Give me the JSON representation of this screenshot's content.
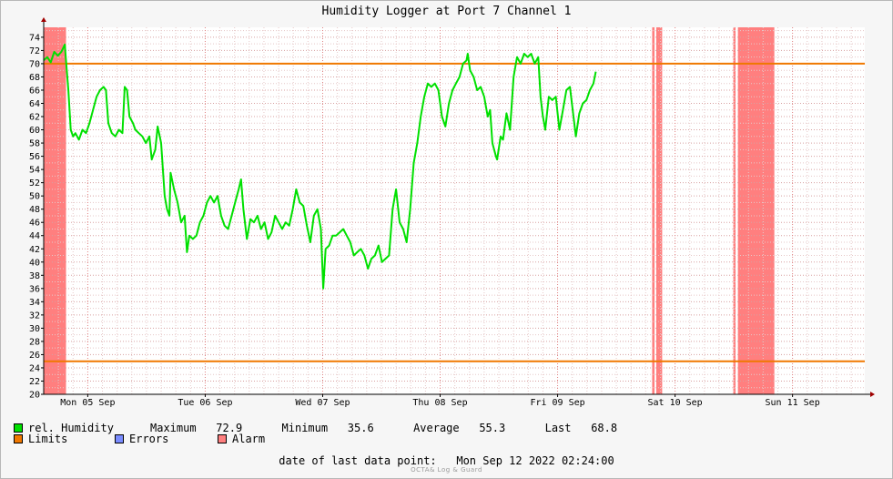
{
  "chart_data": {
    "type": "line",
    "title": "Humidity Logger at Port 7 Channel 1",
    "y_ticks": [
      20,
      22,
      24,
      26,
      28,
      30,
      32,
      34,
      36,
      38,
      40,
      42,
      44,
      46,
      48,
      50,
      52,
      54,
      56,
      58,
      60,
      62,
      64,
      66,
      68,
      70,
      72,
      74
    ],
    "ylim": [
      20,
      75.5
    ],
    "x_range_days": [
      0,
      6.99
    ],
    "x_ticks": [
      {
        "day": 0.375,
        "label": "Mon 05 Sep"
      },
      {
        "day": 1.375,
        "label": "Tue 06 Sep"
      },
      {
        "day": 2.375,
        "label": "Wed 07 Sep"
      },
      {
        "day": 3.375,
        "label": "Thu 08 Sep"
      },
      {
        "day": 4.375,
        "label": "Fri 09 Sep"
      },
      {
        "day": 5.375,
        "label": "Sat 10 Sep"
      },
      {
        "day": 6.375,
        "label": "Sun 11 Sep"
      }
    ],
    "limits": [
      70,
      25
    ],
    "alarm_bands": [
      [
        0.0,
        0.19
      ],
      [
        5.18,
        5.2
      ],
      [
        5.215,
        5.265
      ],
      [
        5.87,
        5.89
      ],
      [
        5.91,
        6.22
      ]
    ],
    "series": [
      {
        "name": "rel. Humidity",
        "color": "#00e000",
        "points": [
          [
            0.0,
            70.5
          ],
          [
            0.03,
            71.0
          ],
          [
            0.06,
            70.2
          ],
          [
            0.09,
            71.8
          ],
          [
            0.12,
            71.2
          ],
          [
            0.15,
            71.8
          ],
          [
            0.18,
            72.9
          ],
          [
            0.19,
            70.5
          ],
          [
            0.21,
            66
          ],
          [
            0.23,
            60
          ],
          [
            0.25,
            59
          ],
          [
            0.27,
            59.5
          ],
          [
            0.3,
            58.5
          ],
          [
            0.33,
            60
          ],
          [
            0.36,
            59.5
          ],
          [
            0.39,
            61
          ],
          [
            0.42,
            63
          ],
          [
            0.45,
            65
          ],
          [
            0.48,
            66
          ],
          [
            0.51,
            66.5
          ],
          [
            0.53,
            66
          ],
          [
            0.55,
            61
          ],
          [
            0.58,
            59.5
          ],
          [
            0.61,
            59
          ],
          [
            0.64,
            60
          ],
          [
            0.67,
            59.5
          ],
          [
            0.69,
            66.5
          ],
          [
            0.71,
            66
          ],
          [
            0.73,
            62
          ],
          [
            0.76,
            61
          ],
          [
            0.78,
            60
          ],
          [
            0.81,
            59.5
          ],
          [
            0.84,
            59
          ],
          [
            0.87,
            58
          ],
          [
            0.9,
            59
          ],
          [
            0.92,
            55.5
          ],
          [
            0.95,
            57
          ],
          [
            0.97,
            60.5
          ],
          [
            1.0,
            58
          ],
          [
            1.03,
            50
          ],
          [
            1.05,
            48
          ],
          [
            1.07,
            47
          ],
          [
            1.08,
            53.5
          ],
          [
            1.11,
            51
          ],
          [
            1.14,
            49
          ],
          [
            1.17,
            46
          ],
          [
            1.2,
            47
          ],
          [
            1.22,
            41.5
          ],
          [
            1.24,
            44
          ],
          [
            1.27,
            43.5
          ],
          [
            1.3,
            44
          ],
          [
            1.33,
            46
          ],
          [
            1.36,
            47
          ],
          [
            1.39,
            49
          ],
          [
            1.42,
            50
          ],
          [
            1.45,
            49
          ],
          [
            1.48,
            50
          ],
          [
            1.51,
            47
          ],
          [
            1.54,
            45.5
          ],
          [
            1.57,
            45
          ],
          [
            1.6,
            47
          ],
          [
            1.63,
            49
          ],
          [
            1.66,
            51
          ],
          [
            1.68,
            52.5
          ],
          [
            1.7,
            48
          ],
          [
            1.73,
            43.5
          ],
          [
            1.76,
            46.5
          ],
          [
            1.79,
            46
          ],
          [
            1.82,
            47
          ],
          [
            1.85,
            45
          ],
          [
            1.88,
            46
          ],
          [
            1.91,
            43.5
          ],
          [
            1.94,
            44.5
          ],
          [
            1.97,
            47
          ],
          [
            2.0,
            46
          ],
          [
            2.03,
            45
          ],
          [
            2.06,
            46
          ],
          [
            2.09,
            45.5
          ],
          [
            2.12,
            48
          ],
          [
            2.15,
            51
          ],
          [
            2.18,
            49
          ],
          [
            2.21,
            48.5
          ],
          [
            2.24,
            45.5
          ],
          [
            2.27,
            43
          ],
          [
            2.3,
            47
          ],
          [
            2.33,
            48
          ],
          [
            2.36,
            45
          ],
          [
            2.38,
            36
          ],
          [
            2.4,
            42
          ],
          [
            2.43,
            42.5
          ],
          [
            2.46,
            44
          ],
          [
            2.49,
            44
          ],
          [
            2.52,
            44.5
          ],
          [
            2.55,
            45
          ],
          [
            2.58,
            44
          ],
          [
            2.61,
            43
          ],
          [
            2.64,
            41
          ],
          [
            2.67,
            41.5
          ],
          [
            2.7,
            42
          ],
          [
            2.73,
            41
          ],
          [
            2.76,
            39
          ],
          [
            2.79,
            40.5
          ],
          [
            2.82,
            41
          ],
          [
            2.85,
            42.5
          ],
          [
            2.88,
            40
          ],
          [
            2.91,
            40.5
          ],
          [
            2.94,
            41
          ],
          [
            2.97,
            48
          ],
          [
            3.0,
            51
          ],
          [
            3.03,
            46
          ],
          [
            3.06,
            45
          ],
          [
            3.09,
            43
          ],
          [
            3.12,
            48
          ],
          [
            3.15,
            55
          ],
          [
            3.18,
            58
          ],
          [
            3.21,
            62
          ],
          [
            3.24,
            65
          ],
          [
            3.27,
            67
          ],
          [
            3.3,
            66.5
          ],
          [
            3.33,
            67
          ],
          [
            3.36,
            66
          ],
          [
            3.39,
            62
          ],
          [
            3.42,
            60.5
          ],
          [
            3.45,
            64
          ],
          [
            3.48,
            66
          ],
          [
            3.51,
            67
          ],
          [
            3.54,
            68
          ],
          [
            3.57,
            70
          ],
          [
            3.6,
            70.5
          ],
          [
            3.61,
            71.5
          ],
          [
            3.63,
            69
          ],
          [
            3.66,
            68
          ],
          [
            3.69,
            66
          ],
          [
            3.72,
            66.5
          ],
          [
            3.75,
            65
          ],
          [
            3.78,
            62
          ],
          [
            3.8,
            63
          ],
          [
            3.82,
            58
          ],
          [
            3.85,
            56
          ],
          [
            3.86,
            55.5
          ],
          [
            3.89,
            59
          ],
          [
            3.91,
            58.5
          ],
          [
            3.94,
            62.5
          ],
          [
            3.97,
            60
          ],
          [
            4.0,
            68
          ],
          [
            4.03,
            71
          ],
          [
            4.06,
            70
          ],
          [
            4.09,
            71.5
          ],
          [
            4.12,
            71
          ],
          [
            4.15,
            71.5
          ],
          [
            4.18,
            70
          ],
          [
            4.21,
            71
          ],
          [
            4.23,
            65
          ],
          [
            4.25,
            62
          ],
          [
            4.27,
            60
          ],
          [
            4.3,
            65
          ],
          [
            4.33,
            64.5
          ],
          [
            4.36,
            65
          ],
          [
            4.39,
            60
          ],
          [
            4.42,
            63
          ],
          [
            4.45,
            66
          ],
          [
            4.48,
            66.5
          ],
          [
            4.51,
            62
          ],
          [
            4.53,
            59
          ],
          [
            4.56,
            62.5
          ],
          [
            4.59,
            64
          ],
          [
            4.62,
            64.5
          ],
          [
            4.65,
            66
          ],
          [
            4.68,
            67
          ],
          [
            4.7,
            68.8
          ]
        ]
      }
    ],
    "legend": [
      {
        "label": "rel. Humidity",
        "color": "#00e000"
      },
      {
        "label": "Limits",
        "color": "#f07800"
      },
      {
        "label": "Errors",
        "color": "#7a8cff"
      },
      {
        "label": "Alarm",
        "color": "#ff7f7f"
      }
    ]
  },
  "stats": {
    "maximum_label": "Maximum",
    "maximum_value": "72.9",
    "minimum_label": "Minimum",
    "minimum_value": "35.6",
    "average_label": "Average",
    "average_value": "55.3",
    "last_label": "Last",
    "last_value": "68.8"
  },
  "footer": {
    "date_label": "date of last data point:",
    "date_value": "Mon Sep 12 2022 02:24:00",
    "brand": "OCTA& Log & Guard"
  }
}
